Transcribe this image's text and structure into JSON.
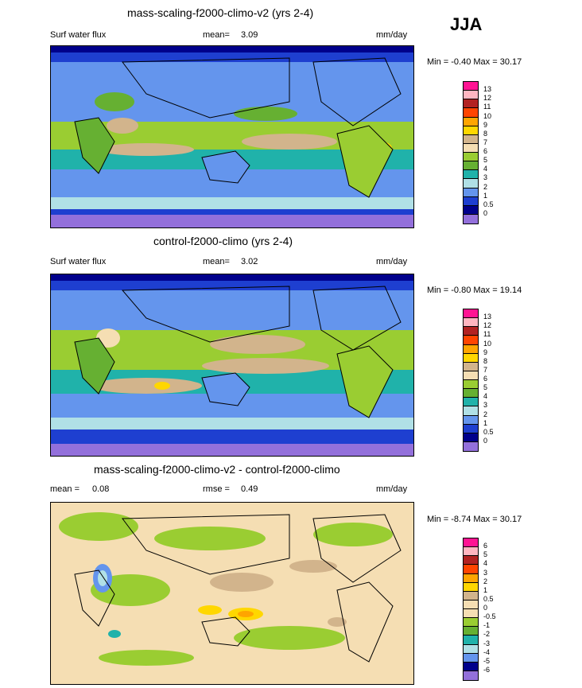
{
  "season": "JJA",
  "panels": [
    {
      "title": "mass-scaling-f2000-climo-v2 (yrs 2-4)",
      "left_label": "Surf water flux",
      "mid_label": "mean=",
      "mid_value": "3.09",
      "units": "mm/day",
      "minmax": "Min = -0.40 Max = 30.17",
      "colorbar": {
        "levels": [
          "13",
          "12",
          "11",
          "10",
          "9",
          "8",
          "7",
          "6",
          "5",
          "4",
          "3",
          "2",
          "1",
          "0.5",
          "0"
        ],
        "colors": [
          "#ff1493",
          "#ffb6c1",
          "#b22222",
          "#ff4500",
          "#ffa500",
          "#ffd700",
          "#d2b48c",
          "#f5deb3",
          "#9acd32",
          "#66b032",
          "#20b2aa",
          "#b0e0e6",
          "#6495ed",
          "#1e3fd0",
          "#00008b",
          "#9370db"
        ]
      }
    },
    {
      "title": "control-f2000-climo (yrs 2-4)",
      "left_label": "Surf water flux",
      "mid_label": "mean=",
      "mid_value": "3.02",
      "units": "mm/day",
      "minmax": "Min = -0.80 Max = 19.14",
      "colorbar": {
        "levels": [
          "13",
          "12",
          "11",
          "10",
          "9",
          "8",
          "7",
          "6",
          "5",
          "4",
          "3",
          "2",
          "1",
          "0.5",
          "0"
        ],
        "colors": [
          "#ff1493",
          "#ffb6c1",
          "#b22222",
          "#ff4500",
          "#ffa500",
          "#ffd700",
          "#d2b48c",
          "#f5deb3",
          "#9acd32",
          "#66b032",
          "#20b2aa",
          "#b0e0e6",
          "#6495ed",
          "#1e3fd0",
          "#00008b",
          "#9370db"
        ]
      }
    },
    {
      "title": "mass-scaling-f2000-climo-v2 - control-f2000-climo",
      "left_label": "mean =",
      "left_value": "0.08",
      "mid_label": "rmse =",
      "mid_value": "0.49",
      "units": "mm/day",
      "minmax": "Min = -8.74 Max = 30.17",
      "colorbar": {
        "levels": [
          "6",
          "5",
          "4",
          "3",
          "2",
          "1",
          "0.5",
          "0",
          "-0.5",
          "-1",
          "-2",
          "-3",
          "-4",
          "-5",
          "-6"
        ],
        "colors": [
          "#ff1493",
          "#ffb6c1",
          "#b22222",
          "#ff4500",
          "#ffa500",
          "#ffd700",
          "#d2b48c",
          "#f5deb3",
          "#f5deb3",
          "#9acd32",
          "#66b032",
          "#20b2aa",
          "#b0e0e6",
          "#6495ed",
          "#00008b",
          "#9370db"
        ]
      }
    }
  ]
}
